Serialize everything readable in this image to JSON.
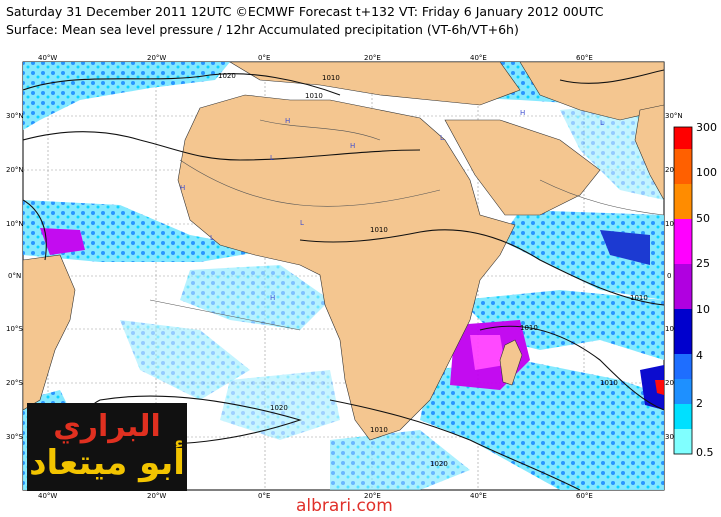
{
  "header": {
    "line1": "Saturday 31 December 2011 12UTC ©ECMWF Forecast t+132 VT: Friday 6 January 2012 00UTC",
    "line2": "Surface: Mean sea level pressure / 12hr Accumulated precipitation (VT-6h/VT+6h)"
  },
  "map": {
    "lon_ticks_top": [
      "40°W",
      "20°W",
      "0°E",
      "20°E",
      "40°E",
      "60°E"
    ],
    "lon_ticks_bottom": [
      "40°W",
      "20°W",
      "0°E",
      "20°E",
      "40°E",
      "60°E"
    ],
    "lat_ticks_left": [
      "30°N",
      "20°N",
      "10°N",
      "0°N",
      "10°S",
      "20°S",
      "30°S"
    ],
    "lat_ticks_right": [
      "30°N",
      "20",
      "10",
      "0",
      "10",
      "20",
      "30"
    ],
    "isobar_labels": [
      "1020",
      "1010",
      "1010",
      "1010",
      "1010",
      "1020",
      "1010",
      "1020",
      "1010",
      "1010"
    ],
    "high_label": "H",
    "low_label": "L",
    "colors": {
      "land": "#f4c690",
      "sea": "#ffffff",
      "isobar": "#111111"
    }
  },
  "colorbar": {
    "levels": [
      "300",
      "100",
      "50",
      "25",
      "10",
      "4",
      "2",
      "0.5"
    ],
    "colors": [
      "#ff0000",
      "#ff8000",
      "#ff7f00",
      "#ff00ff",
      "#b000e0",
      "#0000cd",
      "#1e6eff",
      "#00ffff",
      "#80ffff"
    ]
  },
  "watermark": {
    "line1": "البراري",
    "line2": "أبو ميتعاد",
    "site": "albrari.com"
  }
}
